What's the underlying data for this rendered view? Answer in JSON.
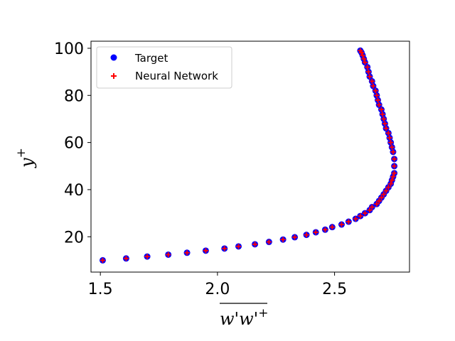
{
  "chart_data": {
    "type": "scatter",
    "title": "",
    "xlabel": "w'w'+",
    "ylabel": "y+",
    "xlim": [
      1.46,
      2.82
    ],
    "ylim": [
      5,
      103
    ],
    "xticks": [
      1.5,
      2.0,
      2.5
    ],
    "xtick_labels": [
      "1.5",
      "2.0",
      "2.5"
    ],
    "yticks": [
      20,
      40,
      60,
      80,
      100
    ],
    "ytick_labels": [
      "20",
      "40",
      "60",
      "80",
      "100"
    ],
    "grid": false,
    "legend_position": "upper-left",
    "series": [
      {
        "name": "Target",
        "marker": "circle",
        "color": "#0000ff",
        "x": [
          1.51,
          1.61,
          1.7,
          1.79,
          1.87,
          1.95,
          2.03,
          2.09,
          2.16,
          2.22,
          2.28,
          2.33,
          2.38,
          2.42,
          2.46,
          2.49,
          2.53,
          2.56,
          2.59,
          2.61,
          2.63,
          2.65,
          2.66,
          2.68,
          2.69,
          2.7,
          2.71,
          2.72,
          2.73,
          2.74,
          2.745,
          2.75,
          2.755,
          2.755,
          2.755,
          2.75,
          2.745,
          2.74,
          2.735,
          2.73,
          2.72,
          2.715,
          2.71,
          2.705,
          2.7,
          2.69,
          2.685,
          2.68,
          2.675,
          2.665,
          2.66,
          2.65,
          2.645,
          2.64,
          2.63,
          2.625,
          2.62,
          2.615,
          2.61
        ],
        "y": [
          10,
          10.8,
          11.6,
          12.4,
          13.2,
          14.1,
          15.0,
          15.9,
          16.8,
          17.8,
          18.8,
          19.8,
          20.8,
          21.9,
          23.0,
          24.1,
          25.2,
          26.4,
          27.6,
          28.8,
          30.0,
          31.3,
          32.6,
          33.9,
          35.2,
          36.6,
          38.0,
          39.5,
          41.0,
          42.5,
          44.0,
          45.5,
          47.0,
          50.0,
          53.0,
          56.0,
          58.0,
          60.0,
          62.0,
          64.0,
          66.0,
          68.0,
          70.0,
          72.0,
          74.0,
          76.0,
          78.0,
          80.0,
          82.0,
          84.0,
          86.0,
          88.0,
          90.0,
          92.0,
          94.0,
          95.5,
          97.0,
          98.2,
          99.0
        ]
      },
      {
        "name": "Neural Network",
        "marker": "plus",
        "color": "#ff0000",
        "x": [
          1.51,
          1.61,
          1.7,
          1.79,
          1.87,
          1.95,
          2.03,
          2.09,
          2.16,
          2.22,
          2.28,
          2.33,
          2.38,
          2.42,
          2.46,
          2.49,
          2.53,
          2.56,
          2.59,
          2.61,
          2.63,
          2.65,
          2.66,
          2.68,
          2.69,
          2.7,
          2.71,
          2.72,
          2.73,
          2.74,
          2.745,
          2.75,
          2.755,
          2.755,
          2.755,
          2.75,
          2.745,
          2.74,
          2.735,
          2.73,
          2.72,
          2.715,
          2.71,
          2.705,
          2.7,
          2.69,
          2.685,
          2.68,
          2.675,
          2.665,
          2.66,
          2.65,
          2.645,
          2.64,
          2.63,
          2.625,
          2.62,
          2.615,
          2.61
        ],
        "y": [
          10,
          10.8,
          11.6,
          12.4,
          13.2,
          14.1,
          15.0,
          15.9,
          16.8,
          17.8,
          18.8,
          19.8,
          20.8,
          21.9,
          23.0,
          24.1,
          25.2,
          26.4,
          27.6,
          28.8,
          30.0,
          31.3,
          32.6,
          33.9,
          35.2,
          36.6,
          38.0,
          39.5,
          41.0,
          42.5,
          44.0,
          45.5,
          47.0,
          50.0,
          53.0,
          56.0,
          58.0,
          60.0,
          62.0,
          64.0,
          66.0,
          68.0,
          70.0,
          72.0,
          74.0,
          76.0,
          78.0,
          80.0,
          82.0,
          84.0,
          86.0,
          88.0,
          90.0,
          92.0,
          94.0,
          95.5,
          97.0,
          98.2,
          99.0
        ]
      }
    ]
  }
}
